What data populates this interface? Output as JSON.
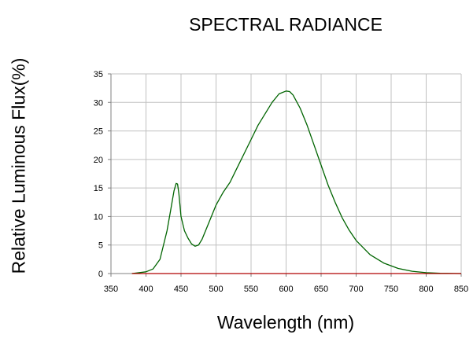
{
  "chart_data": {
    "type": "line",
    "title": "SPECTRAL RADIANCE",
    "xlabel": "Wavelength (nm)",
    "ylabel": "Relative Luminous Flux(%)",
    "xlim": [
      350,
      850
    ],
    "ylim": [
      0,
      35
    ],
    "xticks": [
      "350",
      "400",
      "450",
      "500",
      "550",
      "600",
      "650",
      "700",
      "750",
      "800",
      "850"
    ],
    "yticks": [
      "0",
      "5",
      "10",
      "15",
      "20",
      "25",
      "30",
      "35"
    ],
    "grid": true,
    "legend": "none",
    "colors": {
      "spectrum": "#006400",
      "baseline": "#b00000",
      "grid": "#c0c0c0",
      "axis": "#808080"
    },
    "series": [
      {
        "x": [
          380,
          400,
          410,
          420,
          430,
          435,
          440,
          443,
          445,
          447,
          450,
          455,
          460,
          465,
          470,
          475,
          480,
          490,
          500,
          510,
          520,
          530,
          540,
          550,
          560,
          570,
          580,
          590,
          600,
          605,
          610,
          620,
          630,
          640,
          650,
          660,
          670,
          680,
          690,
          700,
          720,
          740,
          760,
          780,
          800,
          820,
          850
        ],
        "y": [
          0,
          0.3,
          0.8,
          2.5,
          7.5,
          11,
          14.5,
          15.8,
          15.7,
          14,
          10,
          7.5,
          6.2,
          5.2,
          4.8,
          5,
          6,
          9,
          12,
          14.2,
          16,
          18.5,
          21,
          23.5,
          26,
          28,
          30,
          31.5,
          32,
          31.9,
          31.3,
          29,
          26,
          22.5,
          19,
          15.5,
          12.5,
          9.8,
          7.6,
          5.8,
          3.3,
          1.8,
          0.9,
          0.4,
          0.15,
          0.05,
          0
        ]
      },
      {
        "x": [
          380,
          850
        ],
        "y": [
          0,
          0
        ]
      }
    ]
  }
}
